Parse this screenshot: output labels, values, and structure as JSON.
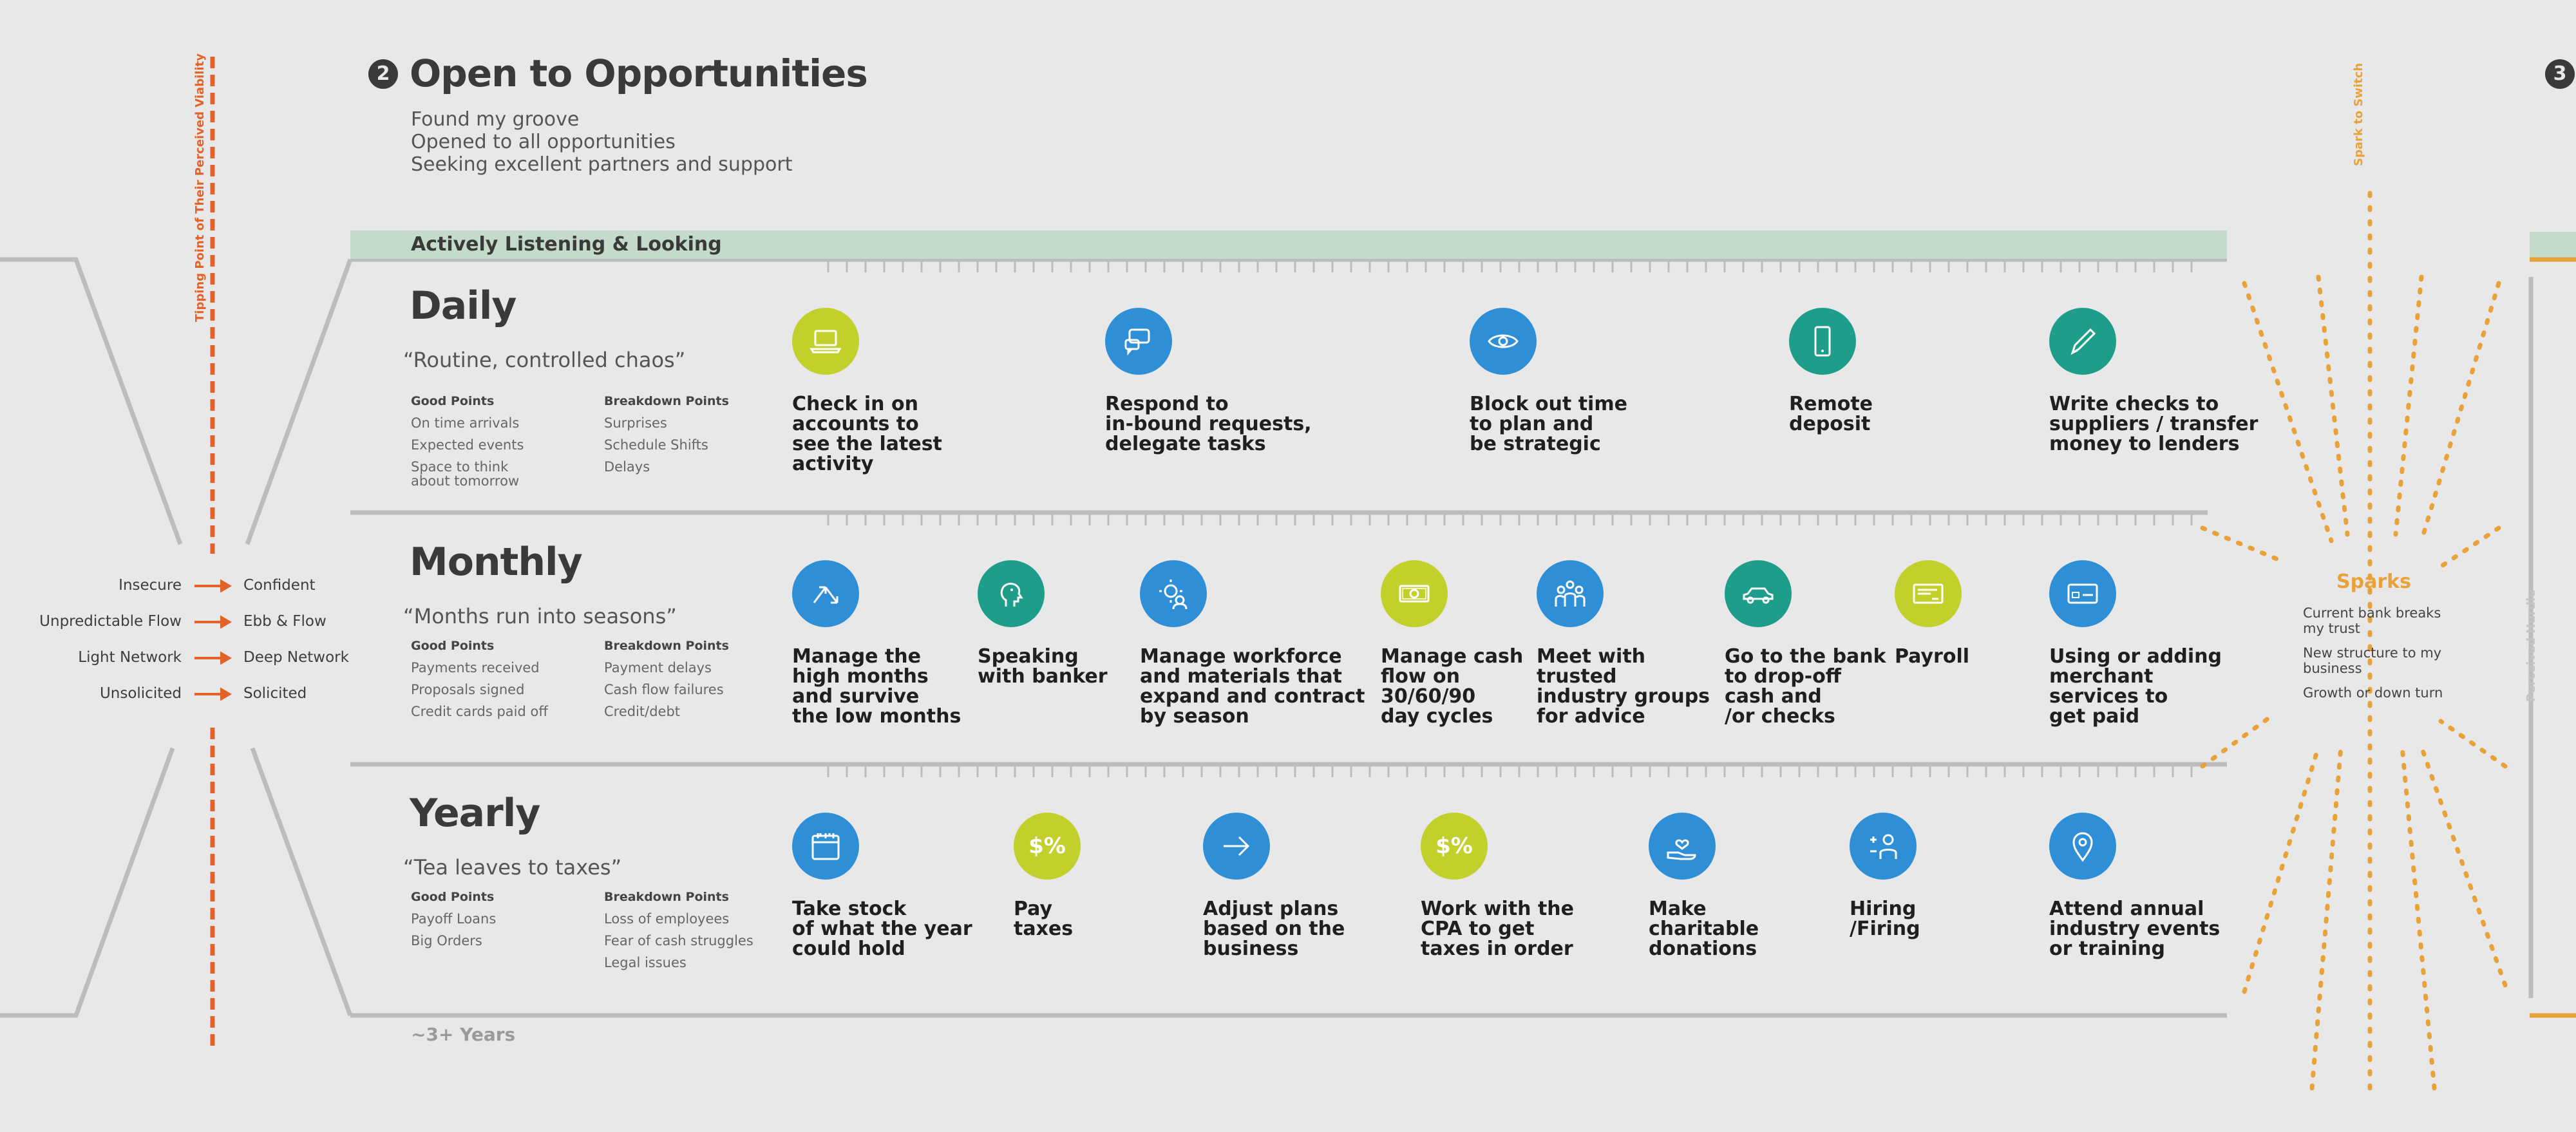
{
  "colors": {
    "background": "#e8e8e8",
    "tipping_orange": "#e3622a",
    "spark_orange": "#e8a23a",
    "band_green": "#c4dacb",
    "lime": "#c3cf2a",
    "blue": "#2f8fd6",
    "teal": "#1e9e8a",
    "grey_line": "#bcbcbc"
  },
  "header": {
    "step_number": "2",
    "next_step_number": "3",
    "title": "Open to Opportunities",
    "lines": [
      "Found my groove",
      "Opened to all opportunities",
      "Seeking excellent partners and support"
    ]
  },
  "labels": {
    "tipping_point": "Tipping Point of Their Perceived Viability",
    "spark_to_switch": "Spark to Switch",
    "perceived_hurdle": "Perceived Hurdle",
    "band": "Actively Listening & Looking",
    "footer": "~3+ Years"
  },
  "transitions": [
    {
      "from": "Insecure",
      "to": "Confident"
    },
    {
      "from": "Unpredictable Flow",
      "to": "Ebb & Flow"
    },
    {
      "from": "Light Network",
      "to": "Deep Network"
    },
    {
      "from": "Unsolicited",
      "to": "Solicited"
    }
  ],
  "sections": [
    {
      "title": "Daily",
      "quote": "“Routine, controlled chaos”",
      "good_label": "Good Points",
      "good": [
        "On time arrivals",
        "Expected events",
        "Space to think\nabout tomorrow"
      ],
      "breakdown_label": "Breakdown Points",
      "breakdown": [
        "Surprises",
        "Schedule Shifts",
        "Delays"
      ],
      "activities": [
        {
          "label": "Check in on\naccounts to\nsee the latest\nactivity",
          "icon": "laptop-icon",
          "color": "lime"
        },
        {
          "label": "Respond to\nin-bound requests,\ndelegate tasks",
          "icon": "chat-bubbles-icon",
          "color": "blue"
        },
        {
          "label": "Block out time\nto plan and\nbe strategic",
          "icon": "eye-icon",
          "color": "blue"
        },
        {
          "label": "Remote\ndeposit",
          "icon": "phone-icon",
          "color": "teal"
        },
        {
          "label": "Write checks to\nsuppliers / transfer\nmoney to lenders",
          "icon": "pen-icon",
          "color": "teal"
        }
      ]
    },
    {
      "title": "Monthly",
      "quote": "“Months run into seasons”",
      "good_label": "Good Points",
      "good": [
        "Payments received",
        "Proposals signed",
        "Credit cards paid off"
      ],
      "breakdown_label": "Breakdown Points",
      "breakdown": [
        "Payment delays",
        "Cash flow failures",
        "Credit/debt"
      ],
      "activities": [
        {
          "label": "Manage the\nhigh months\nand survive\nthe low months",
          "icon": "up-down-arrows-icon",
          "color": "blue"
        },
        {
          "label": "Speaking\nwith banker",
          "icon": "head-speaking-icon",
          "color": "teal"
        },
        {
          "label": "Manage workforce\nand materials that\nexpand and contract\nby season",
          "icon": "worker-gear-icon",
          "color": "blue"
        },
        {
          "label": "Manage cash\nflow on\n30/60/90\nday cycles",
          "icon": "cash-icon",
          "color": "lime"
        },
        {
          "label": "Meet with\ntrusted\nindustry groups\nfor advice",
          "icon": "group-icon",
          "color": "blue"
        },
        {
          "label": "Go to the bank\nto drop-off\ncash and\n/or checks",
          "icon": "car-icon",
          "color": "teal"
        },
        {
          "label": "Payroll",
          "icon": "check-card-icon",
          "color": "lime"
        },
        {
          "label": "Using or adding\nmerchant\nservices to\nget paid",
          "icon": "card-reader-icon",
          "color": "blue"
        }
      ]
    },
    {
      "title": "Yearly",
      "quote": "“Tea leaves to taxes”",
      "good_label": "Good Points",
      "good": [
        "Payoff Loans",
        "Big Orders"
      ],
      "breakdown_label": "Breakdown Points",
      "breakdown": [
        "Loss of employees",
        "Fear of cash struggles",
        "Legal issues"
      ],
      "activities": [
        {
          "label": "Take stock\nof what the year\ncould hold",
          "icon": "calendar-icon",
          "color": "blue"
        },
        {
          "label": "Pay\ntaxes",
          "icon": "dollar-percent-icon",
          "icon_text": "$%",
          "color": "lime"
        },
        {
          "label": "Adjust plans\nbased on the\nbusiness",
          "icon": "arrow-right-icon",
          "color": "blue"
        },
        {
          "label": "Work with the\nCPA to get\ntaxes in order",
          "icon": "dollar-percent-icon",
          "icon_text": "$%",
          "color": "lime"
        },
        {
          "label": "Make\ncharitable\ndonations",
          "icon": "heart-hand-icon",
          "color": "blue"
        },
        {
          "label": "Hiring\n/Firing",
          "icon": "plus-minus-person-icon",
          "color": "blue"
        },
        {
          "label": "Attend annual\nindustry events\nor training",
          "icon": "location-pin-icon",
          "color": "blue"
        }
      ]
    }
  ],
  "sparks": {
    "title": "Sparks",
    "items": [
      "Current bank breaks\nmy trust",
      "New structure to my\nbusiness",
      "Growth or down turn"
    ]
  }
}
